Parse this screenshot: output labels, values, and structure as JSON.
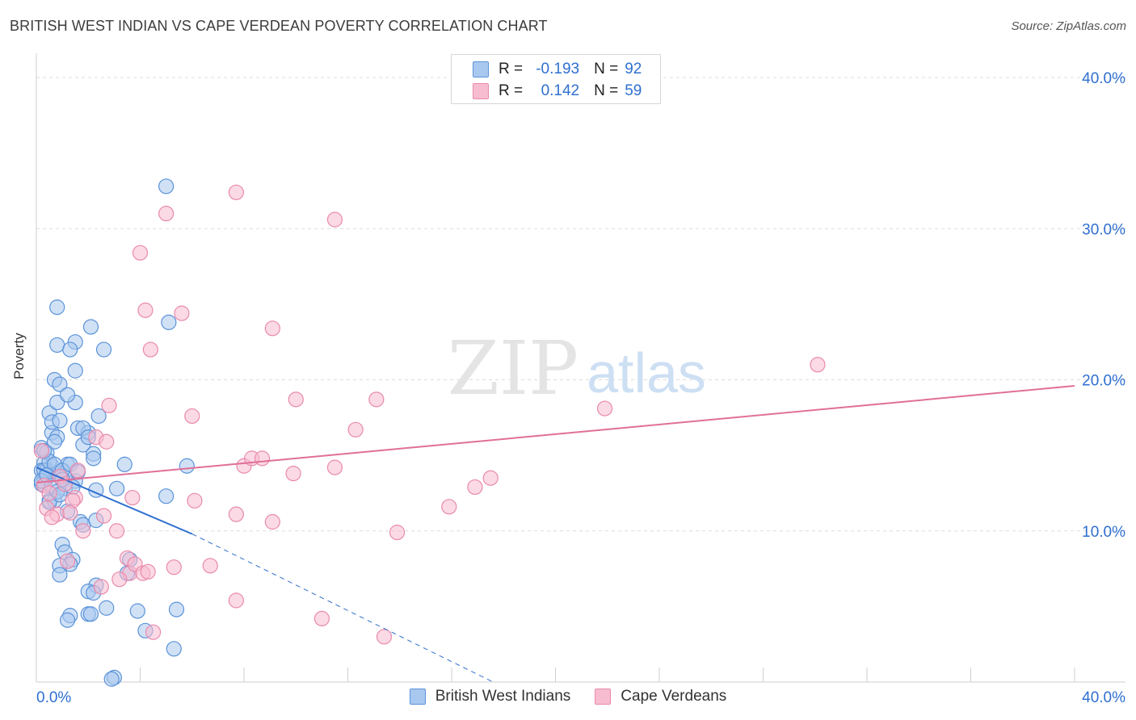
{
  "title": "BRITISH WEST INDIAN VS CAPE VERDEAN POVERTY CORRELATION CHART",
  "source": "Source: ZipAtlas.com",
  "watermark": {
    "zip": "ZIP",
    "atlas": "atlas"
  },
  "colors": {
    "blue_fill": "#a9c8ef",
    "blue_stroke": "#5b93d9",
    "blue_line": "#2f6fd0",
    "pink_fill": "#f7bcd0",
    "pink_stroke": "#e98aac",
    "pink_line": "#e06f98",
    "value_text": "#2f6fd0",
    "grid": "#dcdcdc"
  },
  "legend": {
    "rows": [
      {
        "r_label": "R =",
        "r_value": "-0.193",
        "n_label": "N =",
        "n_value": "92",
        "series": "blue"
      },
      {
        "r_label": "R =",
        "r_value": "0.142",
        "n_label": "N =",
        "n_value": "59",
        "series": "pink"
      }
    ]
  },
  "bottom_legend": [
    {
      "label": "British West Indians",
      "series": "blue"
    },
    {
      "label": "Cape Verdeans",
      "series": "pink"
    }
  ],
  "chart_data": {
    "type": "scatter",
    "xlabel": "",
    "ylabel": "Poverty",
    "xlim": [
      0,
      40
    ],
    "ylim": [
      0,
      40
    ],
    "x_tick_labels": [
      {
        "value": 0,
        "label": "0.0%"
      },
      {
        "value": 40,
        "label": "40.0%"
      }
    ],
    "y_tick_labels": [
      {
        "value": 10,
        "label": "10.0%"
      },
      {
        "value": 20,
        "label": "20.0%"
      },
      {
        "value": 30,
        "label": "30.0%"
      },
      {
        "value": 40,
        "label": "40.0%"
      }
    ],
    "x_minor_ticks": [
      4,
      8,
      12,
      16,
      20,
      24,
      28,
      32,
      36,
      40
    ],
    "y_gridlines": [
      10,
      20,
      30,
      40
    ],
    "series": [
      {
        "name": "British West Indians",
        "color": "blue",
        "R": -0.193,
        "N": 92,
        "trend": {
          "x0": 0,
          "y0": 14.2,
          "x1": 6.0,
          "y1": 9.8,
          "dash_to_x": 17.6,
          "dash_to_y": 0
        },
        "points": [
          [
            0.2,
            15.5
          ],
          [
            0.3,
            14.5
          ],
          [
            0.2,
            14.0
          ],
          [
            0.4,
            13.5
          ],
          [
            0.3,
            13.0
          ],
          [
            0.5,
            12.0
          ],
          [
            0.4,
            15.2
          ],
          [
            0.6,
            16.5
          ],
          [
            0.5,
            17.8
          ],
          [
            0.8,
            18.5
          ],
          [
            0.7,
            20.0
          ],
          [
            0.9,
            19.7
          ],
          [
            0.8,
            22.3
          ],
          [
            1.5,
            22.5
          ],
          [
            1.3,
            22.0
          ],
          [
            2.6,
            22.0
          ],
          [
            0.8,
            24.8
          ],
          [
            2.1,
            23.5
          ],
          [
            1.5,
            20.6
          ],
          [
            1.5,
            18.5
          ],
          [
            1.2,
            19.0
          ],
          [
            0.6,
            17.2
          ],
          [
            0.9,
            17.3
          ],
          [
            1.6,
            16.8
          ],
          [
            0.8,
            16.2
          ],
          [
            2.0,
            16.5
          ],
          [
            1.8,
            16.8
          ],
          [
            2.4,
            17.6
          ],
          [
            1.8,
            15.7
          ],
          [
            2.2,
            15.1
          ],
          [
            2.2,
            14.8
          ],
          [
            2.0,
            16.2
          ],
          [
            1.2,
            14.4
          ],
          [
            1.0,
            14.0
          ],
          [
            0.6,
            14.3
          ],
          [
            0.4,
            14.0
          ],
          [
            0.9,
            13.8
          ],
          [
            1.5,
            13.3
          ],
          [
            0.3,
            13.5
          ],
          [
            0.2,
            13.1
          ],
          [
            0.7,
            12.0
          ],
          [
            1.1,
            12.8
          ],
          [
            1.4,
            12.9
          ],
          [
            1.2,
            11.3
          ],
          [
            1.7,
            10.6
          ],
          [
            1.8,
            10.4
          ],
          [
            2.3,
            10.7
          ],
          [
            2.3,
            12.7
          ],
          [
            3.1,
            12.8
          ],
          [
            3.4,
            14.4
          ],
          [
            1.0,
            9.1
          ],
          [
            1.1,
            8.6
          ],
          [
            1.4,
            8.1
          ],
          [
            1.3,
            7.8
          ],
          [
            0.9,
            7.7
          ],
          [
            0.9,
            7.1
          ],
          [
            2.3,
            6.4
          ],
          [
            2.0,
            6.0
          ],
          [
            2.2,
            5.9
          ],
          [
            2.7,
            4.9
          ],
          [
            2.0,
            4.5
          ],
          [
            2.1,
            4.5
          ],
          [
            1.3,
            4.4
          ],
          [
            1.2,
            4.1
          ],
          [
            3.9,
            4.7
          ],
          [
            4.2,
            3.4
          ],
          [
            5.4,
            4.8
          ],
          [
            5.3,
            2.2
          ],
          [
            3.0,
            0.3
          ],
          [
            2.9,
            0.2
          ],
          [
            3.6,
            8.1
          ],
          [
            3.5,
            7.2
          ],
          [
            5.0,
            32.8
          ],
          [
            5.1,
            23.8
          ],
          [
            5.0,
            12.3
          ],
          [
            5.8,
            14.3
          ],
          [
            0.3,
            14.0
          ],
          [
            0.5,
            14.6
          ],
          [
            0.7,
            14.4
          ],
          [
            0.2,
            13.3
          ],
          [
            1.1,
            13.6
          ],
          [
            1.0,
            14.0
          ],
          [
            0.4,
            13.7
          ],
          [
            0.6,
            13.0
          ],
          [
            0.8,
            12.6
          ],
          [
            1.3,
            14.4
          ],
          [
            0.5,
            11.9
          ],
          [
            1.6,
            13.9
          ],
          [
            0.9,
            12.4
          ],
          [
            1.0,
            13.4
          ],
          [
            0.3,
            15.3
          ],
          [
            0.7,
            15.9
          ]
        ]
      },
      {
        "name": "Cape Verdeans",
        "color": "pink",
        "R": 0.142,
        "N": 59,
        "trend": {
          "x0": 0,
          "y0": 13.2,
          "x1": 40,
          "y1": 19.6
        },
        "points": [
          [
            0.2,
            15.3
          ],
          [
            0.3,
            13.0
          ],
          [
            0.5,
            12.5
          ],
          [
            0.4,
            11.5
          ],
          [
            0.8,
            11.1
          ],
          [
            0.6,
            10.9
          ],
          [
            0.9,
            13.6
          ],
          [
            1.1,
            13.1
          ],
          [
            1.6,
            14.0
          ],
          [
            1.5,
            12.2
          ],
          [
            1.4,
            12.0
          ],
          [
            1.3,
            11.2
          ],
          [
            1.8,
            10.0
          ],
          [
            2.3,
            16.2
          ],
          [
            2.7,
            15.9
          ],
          [
            2.8,
            18.3
          ],
          [
            2.6,
            11.0
          ],
          [
            3.1,
            10.0
          ],
          [
            3.5,
            8.2
          ],
          [
            3.6,
            7.2
          ],
          [
            3.2,
            6.8
          ],
          [
            2.5,
            6.3
          ],
          [
            3.8,
            7.8
          ],
          [
            4.1,
            7.2
          ],
          [
            4.3,
            7.3
          ],
          [
            4.5,
            3.3
          ],
          [
            3.7,
            12.2
          ],
          [
            4.4,
            22.0
          ],
          [
            4.2,
            24.6
          ],
          [
            4.0,
            28.4
          ],
          [
            5.0,
            31.0
          ],
          [
            5.6,
            24.4
          ],
          [
            6.0,
            17.6
          ],
          [
            6.1,
            12.0
          ],
          [
            5.3,
            7.6
          ],
          [
            6.7,
            7.7
          ],
          [
            7.7,
            11.1
          ],
          [
            7.7,
            5.4
          ],
          [
            8.0,
            14.3
          ],
          [
            8.3,
            14.8
          ],
          [
            8.7,
            14.8
          ],
          [
            9.1,
            23.4
          ],
          [
            9.1,
            10.6
          ],
          [
            9.9,
            13.8
          ],
          [
            10.0,
            18.7
          ],
          [
            7.7,
            32.4
          ],
          [
            11.5,
            14.2
          ],
          [
            11.5,
            30.6
          ],
          [
            11.0,
            4.2
          ],
          [
            12.3,
            16.7
          ],
          [
            13.1,
            18.7
          ],
          [
            13.4,
            3.0
          ],
          [
            13.9,
            9.9
          ],
          [
            15.9,
            11.6
          ],
          [
            16.9,
            12.9
          ],
          [
            17.5,
            13.5
          ],
          [
            21.9,
            18.1
          ],
          [
            30.1,
            21.0
          ],
          [
            1.2,
            8.0
          ]
        ]
      }
    ]
  }
}
